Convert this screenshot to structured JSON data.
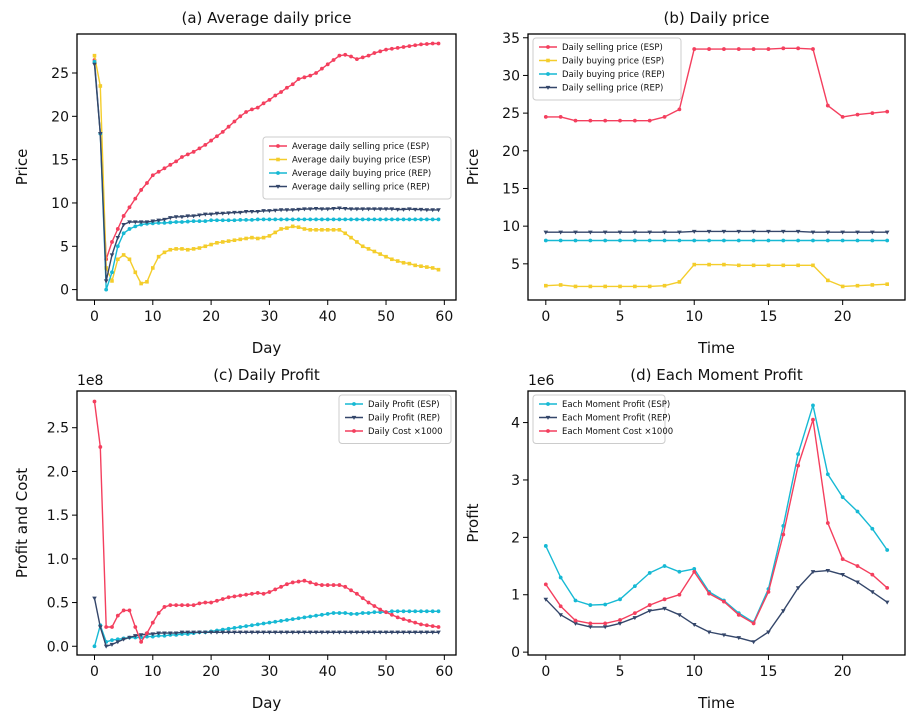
{
  "colors": {
    "pink": "#f43f5e",
    "yellow": "#f4cd2b",
    "cyan": "#16b9d4",
    "navy": "#34466a"
  },
  "chart_data": [
    {
      "id": "a",
      "type": "line",
      "title": "(a) Average daily price",
      "xlabel": "Day",
      "ylabel": "Price",
      "offset": "",
      "xlim": [
        -3,
        62
      ],
      "ylim": [
        -1.2,
        29.5
      ],
      "xticks": [
        0,
        10,
        20,
        30,
        40,
        50,
        60
      ],
      "yticks": [
        0,
        5,
        10,
        15,
        20,
        25
      ],
      "legend": "right",
      "series": [
        {
          "name": "Average daily selling price (ESP)",
          "color": "pink",
          "marker": "circle",
          "y": [
            26.5,
            18,
            3.5,
            5.5,
            7,
            8.5,
            9.5,
            10.5,
            11.5,
            12.3,
            13.2,
            13.6,
            14,
            14.4,
            14.8,
            15.3,
            15.6,
            15.9,
            16.3,
            16.7,
            17.2,
            17.7,
            18.2,
            18.8,
            19.4,
            20,
            20.5,
            20.8,
            21,
            21.5,
            21.9,
            22.4,
            22.8,
            23.3,
            23.7,
            24.3,
            24.5,
            24.7,
            25,
            25.5,
            26,
            26.5,
            27,
            27.1,
            26.9,
            26.6,
            26.8,
            27,
            27.3,
            27.5,
            27.7,
            27.8,
            27.9,
            28,
            28.1,
            28.2,
            28.3,
            28.35,
            28.4,
            28.4
          ]
        },
        {
          "name": "Average daily buying price (ESP)",
          "color": "yellow",
          "marker": "square",
          "y": [
            27,
            23.5,
            2.5,
            1,
            3.5,
            4,
            3.5,
            2,
            0.7,
            0.9,
            2.5,
            3.8,
            4.3,
            4.6,
            4.7,
            4.7,
            4.6,
            4.7,
            4.8,
            5,
            5.2,
            5.4,
            5.5,
            5.6,
            5.7,
            5.8,
            5.9,
            6,
            5.9,
            6,
            6.2,
            6.6,
            7,
            7.1,
            7.3,
            7.2,
            7,
            6.9,
            6.9,
            6.9,
            6.9,
            6.9,
            6.9,
            6.5,
            6,
            5.5,
            5,
            4.7,
            4.4,
            4.1,
            3.8,
            3.5,
            3.3,
            3.1,
            3,
            2.8,
            2.7,
            2.6,
            2.5,
            2.3
          ]
        },
        {
          "name": "Average daily buying price (REP)",
          "color": "cyan",
          "marker": "circle",
          "y": [
            26.3,
            18,
            0,
            2,
            5,
            6.5,
            7,
            7.3,
            7.5,
            7.6,
            7.65,
            7.7,
            7.7,
            7.75,
            7.8,
            7.8,
            7.85,
            7.9,
            7.9,
            7.9,
            8,
            8,
            8,
            8,
            8,
            8.05,
            8.05,
            8.05,
            8.1,
            8.1,
            8.1,
            8.1,
            8.1,
            8.1,
            8.1,
            8.1,
            8.1,
            8.1,
            8.1,
            8.1,
            8.1,
            8.1,
            8.1,
            8.1,
            8.1,
            8.1,
            8.1,
            8.1,
            8.1,
            8.1,
            8.1,
            8.1,
            8.1,
            8.1,
            8.1,
            8.1,
            8.1,
            8.1,
            8.1,
            8.1
          ]
        },
        {
          "name": "Average daily selling price (REP)",
          "color": "navy",
          "marker": "triangle",
          "y": [
            26,
            18,
            1,
            4,
            6,
            7.5,
            7.8,
            7.8,
            7.8,
            7.8,
            7.9,
            8,
            8.1,
            8.3,
            8.4,
            8.4,
            8.5,
            8.5,
            8.6,
            8.7,
            8.7,
            8.8,
            8.8,
            8.85,
            8.9,
            8.9,
            9,
            9,
            9,
            9.1,
            9.1,
            9.15,
            9.2,
            9.2,
            9.2,
            9.25,
            9.3,
            9.3,
            9.35,
            9.3,
            9.3,
            9.35,
            9.4,
            9.35,
            9.3,
            9.3,
            9.3,
            9.3,
            9.3,
            9.3,
            9.3,
            9.3,
            9.25,
            9.25,
            9.3,
            9.25,
            9.25,
            9.2,
            9.2,
            9.2
          ]
        }
      ]
    },
    {
      "id": "b",
      "type": "line",
      "title": "(b) Daily price",
      "xlabel": "Time",
      "ylabel": "Price",
      "offset": "",
      "xlim": [
        -1.2,
        24.2
      ],
      "ylim": [
        0.2,
        35.5
      ],
      "xticks": [
        0,
        5,
        10,
        15,
        20
      ],
      "yticks": [
        5,
        10,
        15,
        20,
        25,
        30,
        35
      ],
      "legend": "upper-left",
      "series": [
        {
          "name": "Daily selling price (ESP)",
          "color": "pink",
          "marker": "circle",
          "y": [
            24.5,
            24.5,
            24,
            24,
            24,
            24,
            24,
            24,
            24.5,
            25.5,
            33.5,
            33.5,
            33.5,
            33.5,
            33.5,
            33.5,
            33.6,
            33.6,
            33.5,
            26,
            24.5,
            24.8,
            25,
            25.2
          ]
        },
        {
          "name": "Daily buying price (ESP)",
          "color": "yellow",
          "marker": "square",
          "y": [
            2.1,
            2.2,
            2,
            2,
            2,
            2,
            2,
            2,
            2.1,
            2.6,
            4.9,
            4.9,
            4.9,
            4.8,
            4.8,
            4.8,
            4.8,
            4.8,
            4.8,
            2.8,
            2,
            2.1,
            2.2,
            2.3
          ]
        },
        {
          "name": "Daily buying price (REP)",
          "color": "cyan",
          "marker": "circle",
          "y": [
            8.1,
            8.1,
            8.1,
            8.1,
            8.1,
            8.1,
            8.1,
            8.1,
            8.1,
            8.1,
            8.1,
            8.1,
            8.1,
            8.1,
            8.1,
            8.1,
            8.1,
            8.1,
            8.1,
            8.1,
            8.1,
            8.1,
            8.1,
            8.1
          ]
        },
        {
          "name": "Daily selling price (REP)",
          "color": "navy",
          "marker": "triangle",
          "y": [
            9.2,
            9.2,
            9.2,
            9.2,
            9.2,
            9.2,
            9.2,
            9.2,
            9.2,
            9.2,
            9.3,
            9.3,
            9.3,
            9.3,
            9.3,
            9.3,
            9.3,
            9.3,
            9.2,
            9.2,
            9.2,
            9.2,
            9.2,
            9.2
          ]
        }
      ]
    },
    {
      "id": "c",
      "type": "line",
      "title": "(c) Daily Profit",
      "xlabel": "Day",
      "ylabel": "Profit and Cost",
      "offset": "1e8",
      "xlim": [
        -3,
        62
      ],
      "ylim": [
        -0.1,
        2.92
      ],
      "xticks": [
        0,
        10,
        20,
        30,
        40,
        50,
        60
      ],
      "yticks": [
        0.0,
        0.5,
        1.0,
        1.5,
        2.0,
        2.5
      ],
      "ytick_labels": [
        "0.0",
        "0.5",
        "1.0",
        "1.5",
        "2.0",
        "2.5"
      ],
      "legend": "upper-right",
      "series": [
        {
          "name": "Daily Profit (ESP)",
          "color": "cyan",
          "marker": "circle",
          "y": [
            0,
            0.24,
            0.05,
            0.07,
            0.08,
            0.09,
            0.1,
            0.1,
            0.1,
            0.11,
            0.11,
            0.12,
            0.12,
            0.13,
            0.13,
            0.14,
            0.14,
            0.15,
            0.16,
            0.16,
            0.17,
            0.18,
            0.19,
            0.2,
            0.21,
            0.22,
            0.23,
            0.24,
            0.25,
            0.26,
            0.27,
            0.28,
            0.29,
            0.3,
            0.31,
            0.32,
            0.33,
            0.34,
            0.35,
            0.36,
            0.37,
            0.38,
            0.38,
            0.38,
            0.37,
            0.37,
            0.38,
            0.38,
            0.39,
            0.39,
            0.39,
            0.4,
            0.4,
            0.4,
            0.4,
            0.4,
            0.4,
            0.4,
            0.4,
            0.4
          ]
        },
        {
          "name": "Daily Profit (REP)",
          "color": "navy",
          "marker": "triangle",
          "y": [
            0.55,
            0.22,
            0,
            0.02,
            0.05,
            0.08,
            0.1,
            0.12,
            0.13,
            0.14,
            0.14,
            0.15,
            0.15,
            0.15,
            0.15,
            0.16,
            0.16,
            0.16,
            0.16,
            0.16,
            0.16,
            0.16,
            0.16,
            0.16,
            0.16,
            0.16,
            0.16,
            0.16,
            0.16,
            0.16,
            0.16,
            0.16,
            0.16,
            0.16,
            0.16,
            0.16,
            0.16,
            0.16,
            0.16,
            0.16,
            0.16,
            0.16,
            0.16,
            0.16,
            0.16,
            0.16,
            0.16,
            0.16,
            0.16,
            0.16,
            0.16,
            0.16,
            0.16,
            0.16,
            0.16,
            0.16,
            0.16,
            0.16,
            0.16,
            0.16
          ]
        },
        {
          "name": "Daily Cost ×1000",
          "color": "pink",
          "marker": "circle",
          "y": [
            2.8,
            2.28,
            0.22,
            0.22,
            0.35,
            0.41,
            0.41,
            0.22,
            0.05,
            0.15,
            0.27,
            0.38,
            0.45,
            0.47,
            0.47,
            0.47,
            0.47,
            0.47,
            0.49,
            0.5,
            0.5,
            0.52,
            0.54,
            0.56,
            0.57,
            0.58,
            0.59,
            0.6,
            0.61,
            0.6,
            0.62,
            0.65,
            0.68,
            0.71,
            0.73,
            0.74,
            0.75,
            0.73,
            0.71,
            0.7,
            0.7,
            0.7,
            0.7,
            0.68,
            0.64,
            0.6,
            0.55,
            0.5,
            0.46,
            0.42,
            0.39,
            0.36,
            0.33,
            0.31,
            0.29,
            0.27,
            0.25,
            0.24,
            0.23,
            0.22
          ]
        }
      ]
    },
    {
      "id": "d",
      "type": "line",
      "title": "(d) Each Moment Profit",
      "xlabel": "Time",
      "ylabel": "Profit",
      "offset": "1e6",
      "xlim": [
        -1.2,
        24.2
      ],
      "ylim": [
        -0.05,
        4.55
      ],
      "xticks": [
        0,
        5,
        10,
        15,
        20
      ],
      "yticks": [
        0,
        1,
        2,
        3,
        4
      ],
      "legend": "upper-left",
      "series": [
        {
          "name": "Each Moment Profit (ESP)",
          "color": "cyan",
          "marker": "circle",
          "y": [
            1.85,
            1.3,
            0.9,
            0.82,
            0.83,
            0.92,
            1.15,
            1.38,
            1.5,
            1.4,
            1.45,
            1.05,
            0.9,
            0.68,
            0.52,
            1.1,
            2.2,
            3.45,
            4.3,
            3.1,
            2.7,
            2.45,
            2.15,
            1.78
          ]
        },
        {
          "name": "Each Moment Profit (REP)",
          "color": "navy",
          "marker": "triangle",
          "y": [
            0.92,
            0.65,
            0.5,
            0.44,
            0.44,
            0.5,
            0.6,
            0.72,
            0.76,
            0.65,
            0.48,
            0.35,
            0.3,
            0.25,
            0.18,
            0.35,
            0.72,
            1.12,
            1.4,
            1.42,
            1.35,
            1.22,
            1.05,
            0.87
          ]
        },
        {
          "name": "Each Moment Cost ×1000",
          "color": "pink",
          "marker": "circle",
          "y": [
            1.18,
            0.8,
            0.55,
            0.5,
            0.5,
            0.56,
            0.68,
            0.82,
            0.92,
            1,
            1.4,
            1.02,
            0.88,
            0.65,
            0.5,
            1.05,
            2.05,
            3.25,
            4.05,
            2.25,
            1.62,
            1.5,
            1.35,
            1.12
          ]
        }
      ]
    }
  ]
}
